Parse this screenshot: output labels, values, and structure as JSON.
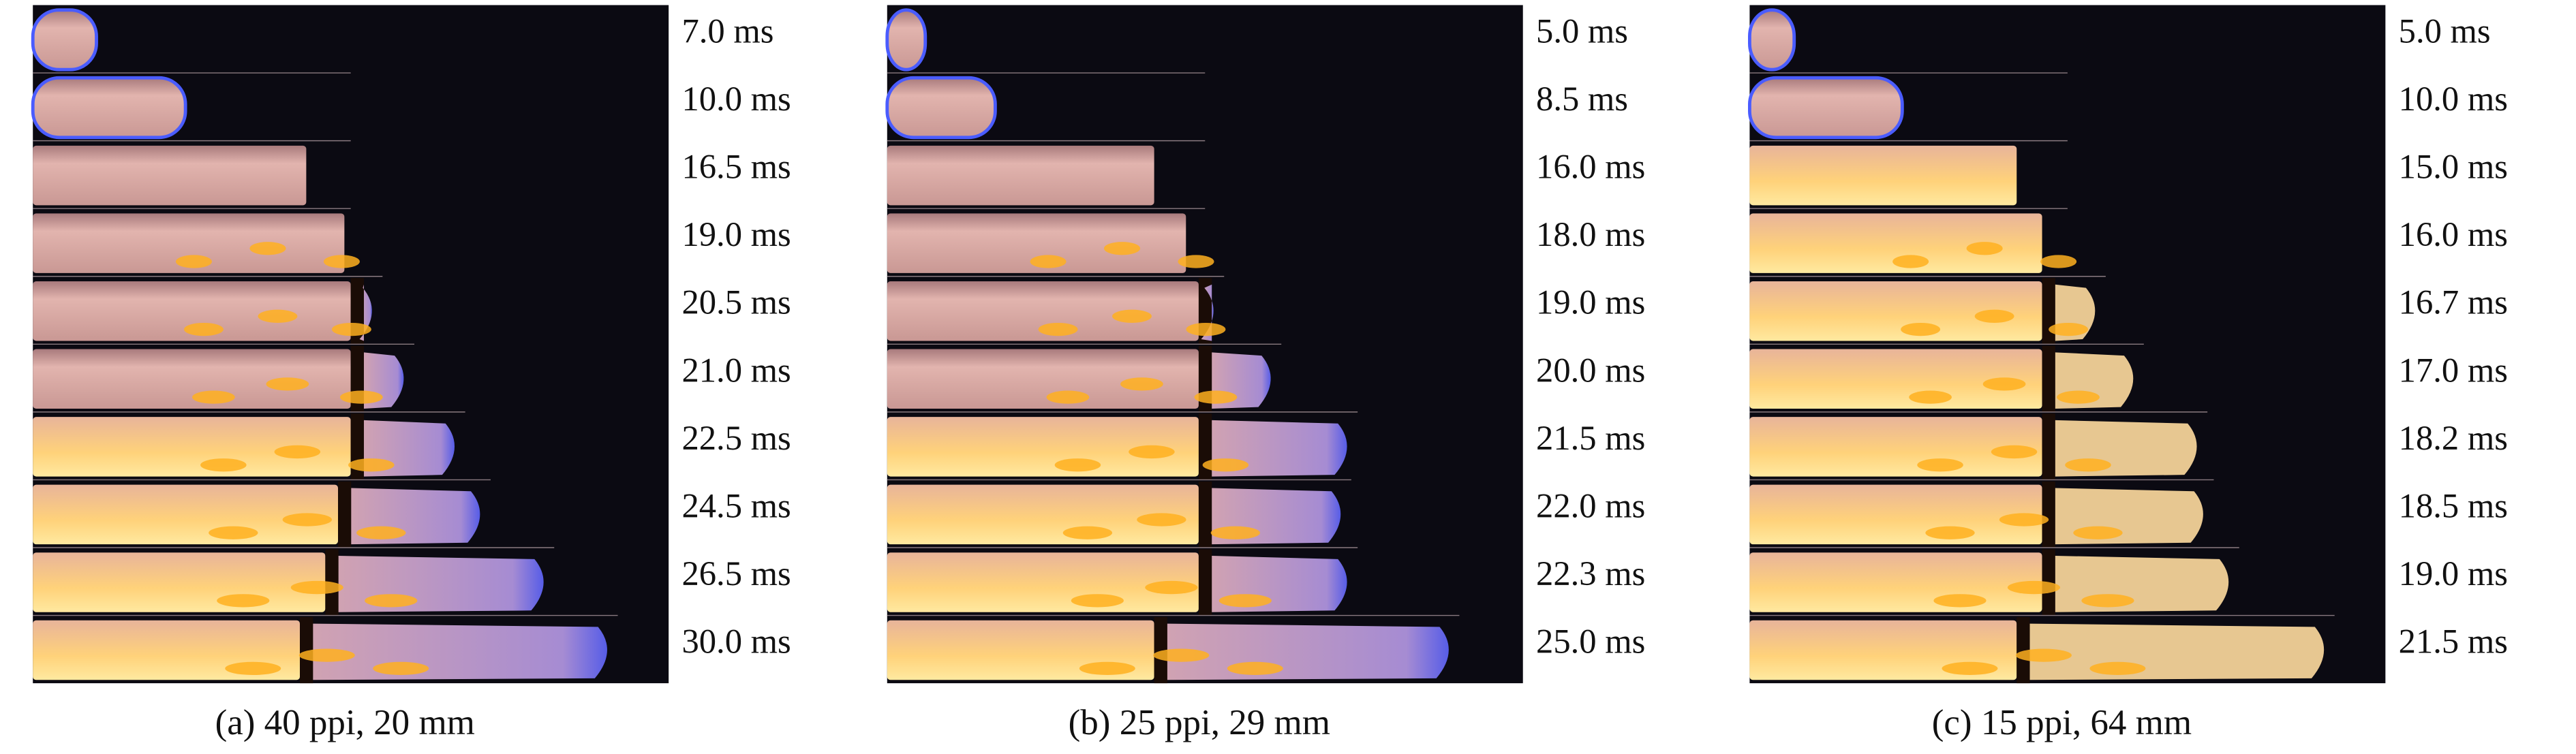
{
  "panels": [
    {
      "caption": "(a) 40 ppi, 20 mm",
      "times": [
        "7.0 ms",
        "10.0 ms",
        "16.5 ms",
        "19.0 ms",
        "20.5 ms",
        "21.0 ms",
        "22.5 ms",
        "24.5 ms",
        "26.5 ms",
        "30.0 ms"
      ]
    },
    {
      "caption": "(b) 25 ppi, 29 mm",
      "times": [
        "5.0 ms",
        "8.5 ms",
        "16.0 ms",
        "18.0 ms",
        "19.0 ms",
        "20.0 ms",
        "21.5 ms",
        "22.0 ms",
        "22.3 ms",
        "25.0 ms"
      ]
    },
    {
      "caption": "(c) 15 ppi, 64 mm",
      "times": [
        "5.0 ms",
        "10.0 ms",
        "15.0 ms",
        "16.0 ms",
        "16.7 ms",
        "17.0 ms",
        "18.2 ms",
        "18.5 ms",
        "19.0 ms",
        "21.5 ms"
      ]
    }
  ]
}
